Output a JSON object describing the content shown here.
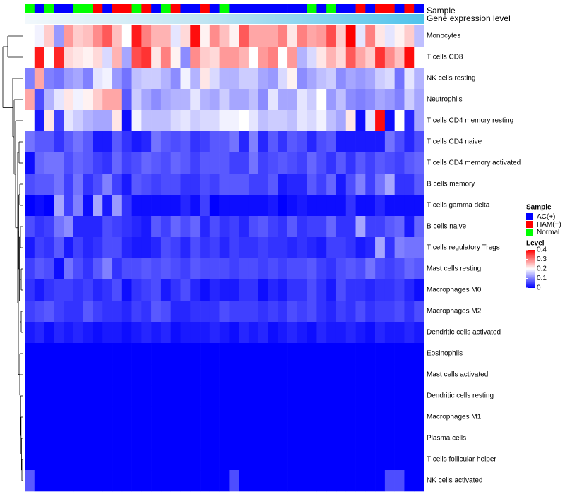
{
  "chart_data": {
    "type": "heatmap",
    "annotation_rows": [
      "Sample",
      "Gene expression level"
    ],
    "rows": [
      "Monocytes",
      "T cells CD8",
      "NK cells resting",
      "Neutrophils",
      "T cells CD4 memory resting",
      "T cells CD4 naive",
      "T cells CD4 memory activated",
      "B cells memory",
      "T cells gamma delta",
      "B cells naive",
      "T cells regulatory  Tregs",
      "Mast cells resting",
      "Macrophages M0",
      "Macrophages M2",
      "Dendritic cells activated",
      "Eosinophils",
      "Mast cells activated",
      "Dendritic cells resting",
      "Macrophages M1",
      "Plasma cells",
      "T cells follicular helper",
      "NK cells activated"
    ],
    "sample_groups": [
      "N",
      "A",
      "N",
      "A",
      "A",
      "N",
      "N",
      "H",
      "A",
      "H",
      "H",
      "N",
      "H",
      "A",
      "N",
      "H",
      "A",
      "A",
      "H",
      "A",
      "N",
      "A",
      "A",
      "A",
      "A",
      "A",
      "A",
      "A",
      "A",
      "N",
      "A",
      "N",
      "A",
      "A",
      "H",
      "A",
      "H",
      "H",
      "A",
      "H",
      "A"
    ],
    "legend_sample": {
      "title": "Sample",
      "entries": [
        {
          "label": "AC(+)",
          "color": "#0000ff"
        },
        {
          "label": "HAM(+)",
          "color": "#ff0000"
        },
        {
          "label": "Normal",
          "color": "#00ff00"
        }
      ]
    },
    "legend_level": {
      "title": "Level",
      "ticks": [
        "0.4",
        "0.3",
        "0.2",
        "0.1",
        "0"
      ],
      "min": 0,
      "max": 0.4,
      "colors": [
        "#0000ff",
        "#ffffff",
        "#ff0000"
      ]
    },
    "values": [
      [
        0.2,
        0.19,
        0.24,
        0.12,
        0.28,
        0.24,
        0.25,
        0.29,
        0.33,
        0.25,
        0.2,
        0.38,
        0.3,
        0.26,
        0.26,
        0.18,
        0.23,
        0.39,
        0.21,
        0.29,
        0.25,
        0.21,
        0.33,
        0.27,
        0.27,
        0.27,
        0.3,
        0.22,
        0.3,
        0.27,
        0.28,
        0.34,
        0.24,
        0.4,
        0.18,
        0.3,
        0.22,
        0.18,
        0.21,
        0.24,
        0.15
      ],
      [
        0.2,
        0.38,
        0.2,
        0.37,
        0.23,
        0.22,
        0.21,
        0.23,
        0.17,
        0.26,
        0.13,
        0.34,
        0.36,
        0.22,
        0.3,
        0.21,
        0.11,
        0.29,
        0.24,
        0.23,
        0.28,
        0.28,
        0.26,
        0.2,
        0.28,
        0.3,
        0.2,
        0.28,
        0.14,
        0.17,
        0.22,
        0.26,
        0.23,
        0.33,
        0.27,
        0.24,
        0.36,
        0.29,
        0.25,
        0.39,
        0.2
      ],
      [
        0.1,
        0.27,
        0.1,
        0.09,
        0.12,
        0.13,
        0.1,
        0.18,
        0.19,
        0.12,
        0.09,
        0.15,
        0.16,
        0.16,
        0.14,
        0.11,
        0.19,
        0.14,
        0.22,
        0.17,
        0.14,
        0.14,
        0.16,
        0.16,
        0.13,
        0.12,
        0.17,
        0.21,
        0.11,
        0.13,
        0.15,
        0.16,
        0.11,
        0.13,
        0.12,
        0.13,
        0.16,
        0.17,
        0.09,
        0.18,
        0.14
      ],
      [
        0.27,
        0.06,
        0.14,
        0.18,
        0.22,
        0.19,
        0.21,
        0.24,
        0.27,
        0.27,
        0.07,
        0.16,
        0.13,
        0.11,
        0.13,
        0.14,
        0.14,
        0.18,
        0.14,
        0.13,
        0.16,
        0.13,
        0.13,
        0.15,
        0.11,
        0.18,
        0.13,
        0.13,
        0.18,
        0.16,
        0.2,
        0.12,
        0.15,
        0.11,
        0.1,
        0.11,
        0.13,
        0.12,
        0.1,
        0.16,
        0.13
      ],
      [
        0.2,
        0.02,
        0.22,
        0.05,
        0.18,
        0.16,
        0.14,
        0.13,
        0.13,
        0.22,
        0.01,
        0.19,
        0.15,
        0.15,
        0.15,
        0.17,
        0.18,
        0.16,
        0.17,
        0.17,
        0.19,
        0.19,
        0.2,
        0.18,
        0.15,
        0.16,
        0.16,
        0.15,
        0.18,
        0.17,
        0.19,
        0.15,
        0.13,
        0.22,
        0.01,
        0.18,
        0.39,
        0.01,
        0.2,
        0.03,
        0.13
      ],
      [
        0.09,
        0.07,
        0.07,
        0.04,
        0.07,
        0.09,
        0.07,
        0.02,
        0.02,
        0.07,
        0.04,
        0.02,
        0.03,
        0.09,
        0.07,
        0.06,
        0.07,
        0.04,
        0.05,
        0.07,
        0.07,
        0.09,
        0.03,
        0.1,
        0.03,
        0.07,
        0.04,
        0.07,
        0.06,
        0.03,
        0.06,
        0.07,
        0.02,
        0.02,
        0.02,
        0.02,
        0.02,
        0.09,
        0.06,
        0.03,
        0.06
      ],
      [
        0.01,
        0.08,
        0.09,
        0.09,
        0.06,
        0.08,
        0.07,
        0.05,
        0.04,
        0.08,
        0.05,
        0.06,
        0.08,
        0.07,
        0.06,
        0.08,
        0.07,
        0.05,
        0.07,
        0.07,
        0.07,
        0.05,
        0.05,
        0.09,
        0.05,
        0.06,
        0.07,
        0.06,
        0.05,
        0.08,
        0.06,
        0.04,
        0.07,
        0.04,
        0.07,
        0.05,
        0.07,
        0.06,
        0.05,
        0.07,
        0.08
      ],
      [
        0.06,
        0.07,
        0.07,
        0.09,
        0.05,
        0.09,
        0.04,
        0.06,
        0.1,
        0.05,
        0.02,
        0.07,
        0.06,
        0.05,
        0.06,
        0.06,
        0.04,
        0.04,
        0.06,
        0.05,
        0.07,
        0.07,
        0.07,
        0.05,
        0.05,
        0.07,
        0.02,
        0.03,
        0.03,
        0.07,
        0.05,
        0.08,
        0.02,
        0.06,
        0.1,
        0.05,
        0.09,
        0.13,
        0.04,
        0.04,
        0.07
      ],
      [
        0.0,
        0.01,
        0.0,
        0.13,
        0.05,
        0.1,
        0.01,
        0.13,
        0.02,
        0.12,
        0.04,
        0.01,
        0.01,
        0.01,
        0.01,
        0.01,
        0.03,
        0.01,
        0.05,
        0.0,
        0.01,
        0.01,
        0.01,
        0.01,
        0.01,
        0.02,
        0.0,
        0.01,
        0.02,
        0.01,
        0.01,
        0.01,
        0.01,
        0.04,
        0.01,
        0.01,
        0.03,
        0.01,
        0.01,
        0.01,
        0.01
      ],
      [
        0.06,
        0.04,
        0.05,
        0.09,
        0.11,
        0.03,
        0.03,
        0.03,
        0.06,
        0.05,
        0.04,
        0.03,
        0.02,
        0.07,
        0.05,
        0.08,
        0.06,
        0.08,
        0.03,
        0.06,
        0.04,
        0.05,
        0.03,
        0.06,
        0.07,
        0.05,
        0.04,
        0.07,
        0.04,
        0.05,
        0.05,
        0.08,
        0.04,
        0.04,
        0.13,
        0.05,
        0.05,
        0.07,
        0.08,
        0.02,
        0.08
      ],
      [
        0.02,
        0.05,
        0.04,
        0.07,
        0.02,
        0.05,
        0.03,
        0.04,
        0.06,
        0.06,
        0.03,
        0.02,
        0.02,
        0.03,
        0.06,
        0.05,
        0.03,
        0.06,
        0.04,
        0.05,
        0.03,
        0.05,
        0.04,
        0.04,
        0.05,
        0.04,
        0.04,
        0.03,
        0.04,
        0.03,
        0.02,
        0.05,
        0.05,
        0.04,
        0.02,
        0.03,
        0.13,
        0.04,
        0.1,
        0.09,
        0.09
      ],
      [
        0.05,
        0.07,
        0.06,
        0.01,
        0.09,
        0.06,
        0.04,
        0.07,
        0.1,
        0.04,
        0.06,
        0.06,
        0.07,
        0.06,
        0.07,
        0.06,
        0.05,
        0.07,
        0.06,
        0.06,
        0.06,
        0.05,
        0.06,
        0.06,
        0.05,
        0.06,
        0.05,
        0.06,
        0.06,
        0.07,
        0.05,
        0.04,
        0.06,
        0.07,
        0.06,
        0.09,
        0.06,
        0.05,
        0.06,
        0.08,
        0.07
      ],
      [
        0.04,
        0.02,
        0.04,
        0.05,
        0.05,
        0.04,
        0.05,
        0.03,
        0.04,
        0.06,
        0.01,
        0.04,
        0.05,
        0.06,
        0.02,
        0.04,
        0.06,
        0.03,
        0.01,
        0.03,
        0.02,
        0.02,
        0.04,
        0.04,
        0.01,
        0.03,
        0.02,
        0.04,
        0.04,
        0.06,
        0.04,
        0.02,
        0.06,
        0.04,
        0.04,
        0.03,
        0.04,
        0.04,
        0.05,
        0.03,
        0.01
      ],
      [
        0.05,
        0.06,
        0.07,
        0.05,
        0.04,
        0.04,
        0.07,
        0.05,
        0.04,
        0.04,
        0.03,
        0.05,
        0.04,
        0.07,
        0.06,
        0.03,
        0.03,
        0.04,
        0.04,
        0.04,
        0.06,
        0.05,
        0.05,
        0.05,
        0.04,
        0.05,
        0.04,
        0.06,
        0.05,
        0.06,
        0.04,
        0.03,
        0.05,
        0.04,
        0.06,
        0.04,
        0.05,
        0.05,
        0.06,
        0.04,
        0.06
      ],
      [
        0.02,
        0.03,
        0.01,
        0.03,
        0.02,
        0.03,
        0.02,
        0.01,
        0.02,
        0.02,
        0.01,
        0.02,
        0.03,
        0.02,
        0.03,
        0.01,
        0.02,
        0.02,
        0.02,
        0.03,
        0.02,
        0.01,
        0.03,
        0.02,
        0.03,
        0.01,
        0.02,
        0.03,
        0.02,
        0.01,
        0.03,
        0.02,
        0.02,
        0.03,
        0.02,
        0.01,
        0.03,
        0.02,
        0.02,
        0.03,
        0.02
      ],
      [
        0,
        0,
        0,
        0,
        0,
        0,
        0,
        0,
        0,
        0,
        0,
        0,
        0,
        0,
        0,
        0,
        0,
        0,
        0,
        0,
        0,
        0,
        0,
        0,
        0,
        0,
        0,
        0,
        0,
        0,
        0,
        0,
        0,
        0,
        0,
        0,
        0,
        0,
        0,
        0,
        0
      ],
      [
        0,
        0,
        0,
        0,
        0,
        0,
        0,
        0,
        0,
        0,
        0,
        0,
        0,
        0,
        0,
        0,
        0,
        0,
        0,
        0,
        0,
        0,
        0,
        0,
        0,
        0,
        0,
        0,
        0,
        0,
        0,
        0,
        0,
        0,
        0,
        0,
        0,
        0,
        0,
        0,
        0
      ],
      [
        0,
        0,
        0,
        0,
        0,
        0,
        0,
        0,
        0,
        0,
        0,
        0,
        0,
        0,
        0,
        0,
        0,
        0,
        0,
        0,
        0,
        0,
        0,
        0,
        0,
        0,
        0,
        0,
        0,
        0,
        0,
        0,
        0,
        0,
        0,
        0,
        0,
        0,
        0,
        0,
        0
      ],
      [
        0,
        0,
        0,
        0,
        0,
        0,
        0,
        0,
        0,
        0,
        0,
        0,
        0,
        0,
        0,
        0,
        0,
        0,
        0,
        0,
        0,
        0,
        0,
        0,
        0,
        0,
        0,
        0,
        0,
        0,
        0,
        0,
        0,
        0,
        0,
        0,
        0,
        0,
        0,
        0,
        0
      ],
      [
        0,
        0,
        0,
        0,
        0,
        0,
        0,
        0,
        0,
        0,
        0,
        0,
        0,
        0,
        0,
        0,
        0,
        0,
        0,
        0,
        0,
        0,
        0,
        0,
        0,
        0,
        0,
        0,
        0,
        0,
        0,
        0,
        0,
        0,
        0,
        0,
        0,
        0,
        0,
        0,
        0
      ],
      [
        0,
        0,
        0,
        0,
        0,
        0,
        0,
        0,
        0,
        0,
        0,
        0,
        0,
        0,
        0,
        0,
        0,
        0,
        0,
        0,
        0,
        0,
        0,
        0,
        0,
        0,
        0,
        0,
        0,
        0,
        0,
        0,
        0,
        0,
        0,
        0,
        0,
        0,
        0,
        0,
        0
      ],
      [
        0.07,
        0,
        0,
        0,
        0,
        0,
        0,
        0,
        0,
        0,
        0,
        0,
        0,
        0,
        0,
        0,
        0,
        0,
        0,
        0,
        0,
        0.06,
        0,
        0,
        0,
        0,
        0,
        0,
        0,
        0,
        0,
        0,
        0,
        0,
        0,
        0,
        0,
        0.06,
        0.06,
        0,
        0
      ]
    ]
  }
}
